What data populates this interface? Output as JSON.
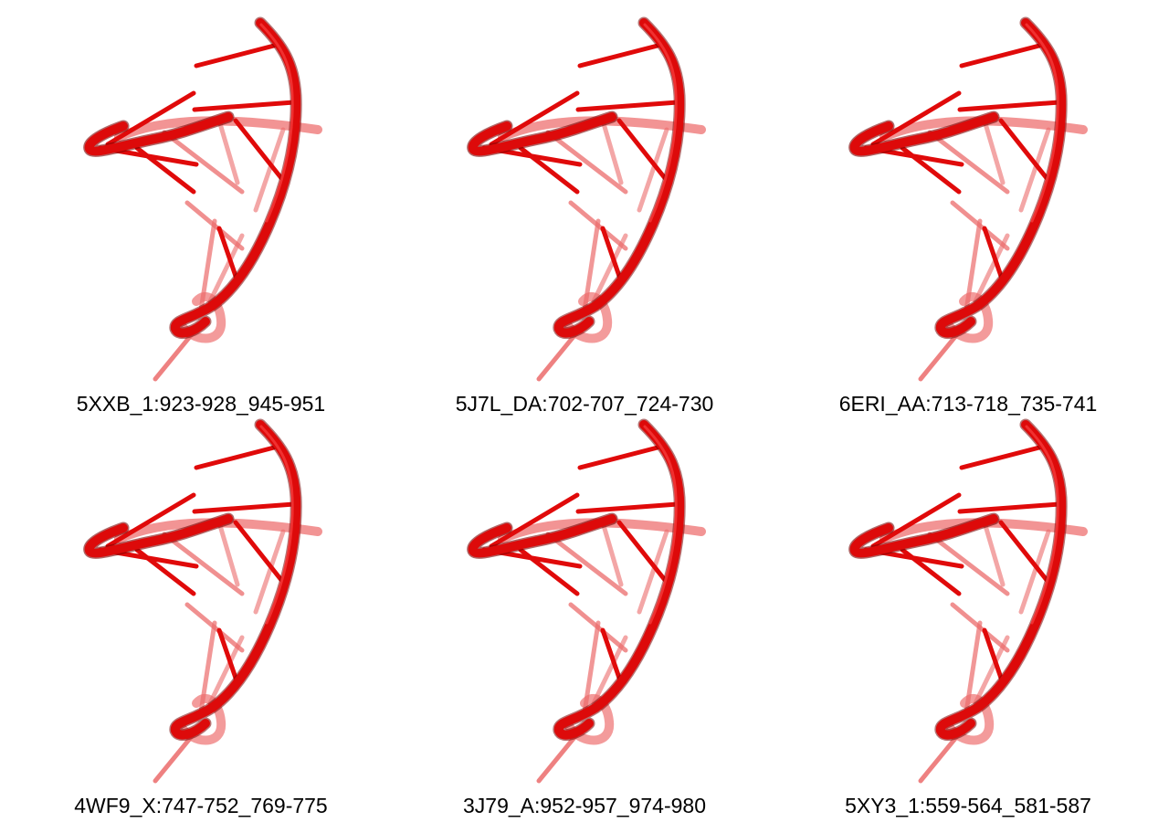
{
  "colors": {
    "backbone": "#dd0a0a",
    "backbone_dark": "#7a0000",
    "backbone_faded": "#ee7070",
    "base": "#e00a0a",
    "base_faded": "#ec6c6c",
    "caption_text": "#000000",
    "background": "#ffffff"
  },
  "panels": [
    {
      "label": "5XXB_1:923-928_945-951"
    },
    {
      "label": "5J7L_DA:702-707_724-730"
    },
    {
      "label": "6ERI_AA:713-718_735-741"
    },
    {
      "label": "4WF9_X:747-752_769-775"
    },
    {
      "label": "3J79_A:952-957_974-980"
    },
    {
      "label": "5XY3_1:559-564_581-587"
    }
  ]
}
